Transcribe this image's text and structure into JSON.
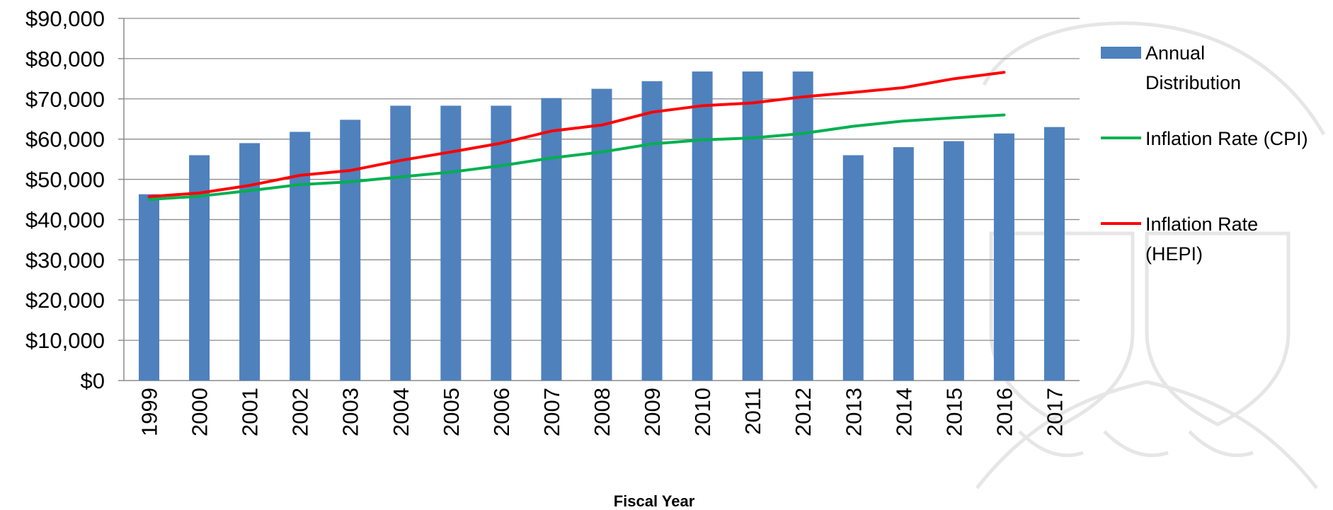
{
  "chart_data": {
    "type": "bar",
    "title": "",
    "xlabel": "Fiscal Year",
    "ylabel": "",
    "ylim": [
      0,
      90000
    ],
    "y_ticks": [
      0,
      10000,
      20000,
      30000,
      40000,
      50000,
      60000,
      70000,
      80000,
      90000
    ],
    "y_tick_labels": [
      "$0",
      "$10,000",
      "$20,000",
      "$30,000",
      "$40,000",
      "$50,000",
      "$60,000",
      "$70,000",
      "$80,000",
      "$90,000"
    ],
    "grid": true,
    "legend_position": "right",
    "categories": [
      "1999",
      "2000",
      "2001",
      "2002",
      "2003",
      "2004",
      "2005",
      "2006",
      "2007",
      "2008",
      "2009",
      "2010",
      "2011",
      "2012",
      "2013",
      "2014",
      "2015",
      "2016",
      "2017"
    ],
    "series": [
      {
        "name": "Annual Distribution",
        "kind": "bar",
        "color": "#4f81bd",
        "values": [
          46300,
          56000,
          59000,
          61800,
          64800,
          68300,
          68300,
          68300,
          70200,
          72500,
          74400,
          76800,
          76800,
          76800,
          56000,
          58000,
          59500,
          61400,
          63000
        ]
      },
      {
        "name": "Inflation Rate (CPI)",
        "kind": "line",
        "color": "#00b050",
        "values": [
          45000,
          45800,
          47200,
          48700,
          49400,
          50600,
          51800,
          53400,
          55300,
          56800,
          58800,
          59800,
          60300,
          61400,
          63200,
          64500,
          65300,
          66000,
          null
        ]
      },
      {
        "name": "Inflation Rate (HEPI)",
        "kind": "line",
        "color": "#ff0000",
        "values": [
          45700,
          46600,
          48500,
          51000,
          52200,
          54700,
          56800,
          59000,
          62000,
          63500,
          66700,
          68300,
          69000,
          70500,
          71600,
          72800,
          75000,
          76600,
          null
        ]
      }
    ]
  },
  "legend": {
    "items": [
      {
        "lines": [
          "Annual",
          "Distribution"
        ]
      },
      {
        "lines": [
          "Inflation Rate (CPI)"
        ]
      },
      {
        "lines": [
          "Inflation Rate",
          "(HEPI)"
        ]
      }
    ]
  }
}
